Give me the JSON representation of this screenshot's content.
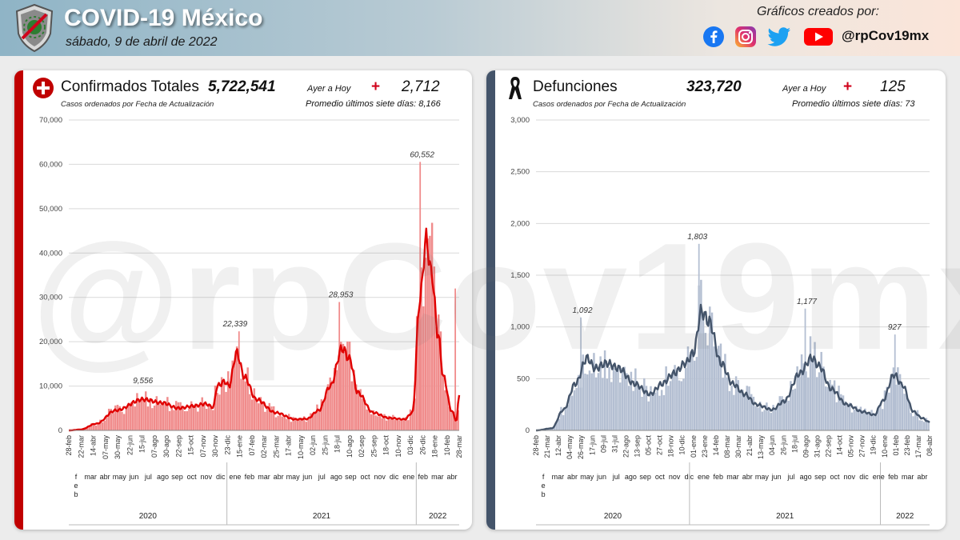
{
  "header": {
    "title": "COVID-19 México",
    "date": "sábado, 9 de abril de 2022",
    "credit": "Gráficos creados por:",
    "handle": "@rpCov19mx",
    "social_icons": [
      "facebook-icon",
      "instagram-icon",
      "twitter-icon",
      "youtube-icon"
    ],
    "colors": {
      "facebook": "#1877f2",
      "instagram": "#d6249f",
      "twitter": "#1da1f2",
      "youtube": "#ff0000"
    }
  },
  "watermark": "@rpCov19mx",
  "confirmed": {
    "icon": "red-cross-icon",
    "title": "Confirmados Totales",
    "total": "5,722,541",
    "ayer_label": "Ayer a Hoy",
    "plus": "+",
    "delta": "2,712",
    "subtitle": "Casos ordenados por Fecha de Actualización",
    "promedio": "Promedio últimos siete días: 8,166",
    "accent": "#c00000"
  },
  "deaths": {
    "icon": "black-ribbon-icon",
    "title": "Defunciones",
    "total": "323,720",
    "ayer_label": "Ayer a Hoy",
    "plus": "+",
    "delta": "125",
    "subtitle": "Casos ordenados por Fecha de Actualización",
    "promedio": "Promedio últimos siete días: 73",
    "accent": "#44546a"
  },
  "chart_data": [
    {
      "type": "bar",
      "name": "confirmed",
      "ylim": [
        0,
        70000
      ],
      "yticks": [
        "0",
        "10,000",
        "20,000",
        "30,000",
        "40,000",
        "50,000",
        "60,000",
        "70,000"
      ],
      "ytick_values": [
        0,
        10000,
        20000,
        30000,
        40000,
        50000,
        60000,
        70000
      ],
      "grid": true,
      "bar_color": "#f08c8c",
      "line_color": "#e00000",
      "date_ticks": [
        "28-feb",
        "22-mar",
        "14-abr",
        "07-may",
        "30-may",
        "22-jun",
        "15-jul",
        "07-ago",
        "30-ago",
        "22-sep",
        "15-oct",
        "07-nov",
        "30-nov",
        "23-dic",
        "15-ene",
        "07-feb",
        "02-mar",
        "25-mar",
        "17-abr",
        "10-may",
        "02-jun",
        "25-jun",
        "18-jul",
        "10-ago",
        "02-sep",
        "25-sep",
        "18-oct",
        "10-nov",
        "03-dic",
        "26-dic",
        "18-ene",
        "10-feb",
        "28-mar"
      ],
      "month_labels": [
        "f\ne\nb",
        "mar",
        "abr",
        "may",
        "jun",
        "jul",
        "ago",
        "sep",
        "oct",
        "nov",
        "dic",
        "ene",
        "feb",
        "mar",
        "abr",
        "may",
        "jun",
        "jul",
        "ago",
        "sep",
        "oct",
        "nov",
        "dic",
        "ene",
        "feb",
        "mar",
        "abr"
      ],
      "years": [
        "2020",
        "2021",
        "2022"
      ],
      "annotations": [
        {
          "label": "9,556",
          "x": 0.19,
          "y": 9556
        },
        {
          "label": "22,339",
          "x": 0.426,
          "y": 22339
        },
        {
          "label": "28,953",
          "x": 0.697,
          "y": 28953
        },
        {
          "label": "60,552",
          "x": 0.905,
          "y": 60552
        }
      ],
      "peaks": [
        [
          0.0,
          0
        ],
        [
          0.03,
          200
        ],
        [
          0.07,
          1500
        ],
        [
          0.12,
          4500
        ],
        [
          0.19,
          7000
        ],
        [
          0.24,
          6200
        ],
        [
          0.28,
          5000
        ],
        [
          0.32,
          5500
        ],
        [
          0.35,
          6000
        ],
        [
          0.37,
          5200
        ],
        [
          0.38,
          10000
        ],
        [
          0.4,
          11000
        ],
        [
          0.41,
          10000
        ],
        [
          0.43,
          17500
        ],
        [
          0.45,
          12000
        ],
        [
          0.48,
          7000
        ],
        [
          0.53,
          4000
        ],
        [
          0.58,
          2500
        ],
        [
          0.61,
          2600
        ],
        [
          0.64,
          4500
        ],
        [
          0.67,
          10000
        ],
        [
          0.7,
          18500
        ],
        [
          0.72,
          16000
        ],
        [
          0.74,
          8500
        ],
        [
          0.78,
          4000
        ],
        [
          0.82,
          2800
        ],
        [
          0.86,
          2500
        ],
        [
          0.88,
          4000
        ],
        [
          0.9,
          30000
        ],
        [
          0.915,
          43000
        ],
        [
          0.93,
          35000
        ],
        [
          0.945,
          22000
        ],
        [
          0.96,
          12000
        ],
        [
          0.98,
          4500
        ],
        [
          0.993,
          2200
        ],
        [
          1.0,
          8200
        ]
      ],
      "spikes": [
        [
          0.436,
          22339
        ],
        [
          0.693,
          28953
        ],
        [
          0.9,
          60552
        ],
        [
          0.99,
          32000
        ]
      ]
    },
    {
      "type": "bar",
      "name": "deaths",
      "ylim": [
        0,
        3000
      ],
      "yticks": [
        "0",
        "500",
        "1,000",
        "1,500",
        "2,000",
        "2,500",
        "3,000"
      ],
      "ytick_values": [
        0,
        500,
        1000,
        1500,
        2000,
        2500,
        3000
      ],
      "grid": true,
      "bar_color": "#b4bfd2",
      "line_color": "#44546a",
      "date_ticks": [
        "28-feb",
        "21-mar",
        "12-abr",
        "04-may",
        "26-may",
        "17-jun",
        "09-jul",
        "31-jul",
        "22-ago",
        "13-sep",
        "05-oct",
        "27-oct",
        "18-nov",
        "10-dic",
        "01-ene",
        "23-ene",
        "14-feb",
        "08-mar",
        "30-mar",
        "21-abr",
        "13-may",
        "04-jun",
        "26-jun",
        "18-jul",
        "09-ago",
        "31-ago",
        "22-sep",
        "14-oct",
        "05-nov",
        "27-nov",
        "19-dic",
        "10-ene",
        "01-feb",
        "23-feb",
        "17-mar",
        "08-abr"
      ],
      "month_labels": [
        "f\ne\nb",
        "mar",
        "abr",
        "may",
        "jun",
        "jul",
        "ago",
        "sep",
        "oct",
        "nov",
        "dic",
        "ene",
        "feb",
        "mar",
        "abr",
        "may",
        "jun",
        "jul",
        "ago",
        "sep",
        "oct",
        "nov",
        "dic",
        "ene",
        "feb",
        "mar",
        "abr"
      ],
      "years": [
        "2020",
        "2021",
        "2022"
      ],
      "annotations": [
        {
          "label": "1,092",
          "x": 0.118,
          "y": 1092
        },
        {
          "label": "1,803",
          "x": 0.41,
          "y": 1803
        },
        {
          "label": "1,177",
          "x": 0.688,
          "y": 1177
        },
        {
          "label": "927",
          "x": 0.911,
          "y": 927
        }
      ],
      "peaks": [
        [
          0.0,
          0
        ],
        [
          0.04,
          20
        ],
        [
          0.07,
          200
        ],
        [
          0.1,
          450
        ],
        [
          0.13,
          700
        ],
        [
          0.15,
          600
        ],
        [
          0.18,
          650
        ],
        [
          0.21,
          600
        ],
        [
          0.25,
          450
        ],
        [
          0.29,
          350
        ],
        [
          0.32,
          450
        ],
        [
          0.35,
          550
        ],
        [
          0.38,
          650
        ],
        [
          0.4,
          750
        ],
        [
          0.42,
          1150
        ],
        [
          0.44,
          1050
        ],
        [
          0.47,
          650
        ],
        [
          0.5,
          450
        ],
        [
          0.53,
          350
        ],
        [
          0.56,
          250
        ],
        [
          0.6,
          200
        ],
        [
          0.63,
          280
        ],
        [
          0.67,
          550
        ],
        [
          0.7,
          700
        ],
        [
          0.72,
          620
        ],
        [
          0.75,
          400
        ],
        [
          0.79,
          250
        ],
        [
          0.83,
          180
        ],
        [
          0.86,
          150
        ],
        [
          0.88,
          280
        ],
        [
          0.91,
          540
        ],
        [
          0.93,
          440
        ],
        [
          0.96,
          180
        ],
        [
          0.98,
          120
        ],
        [
          1.0,
          80
        ]
      ],
      "spikes": [
        [
          0.114,
          1092
        ],
        [
          0.414,
          1803
        ],
        [
          0.684,
          1177
        ],
        [
          0.912,
          927
        ]
      ]
    }
  ]
}
